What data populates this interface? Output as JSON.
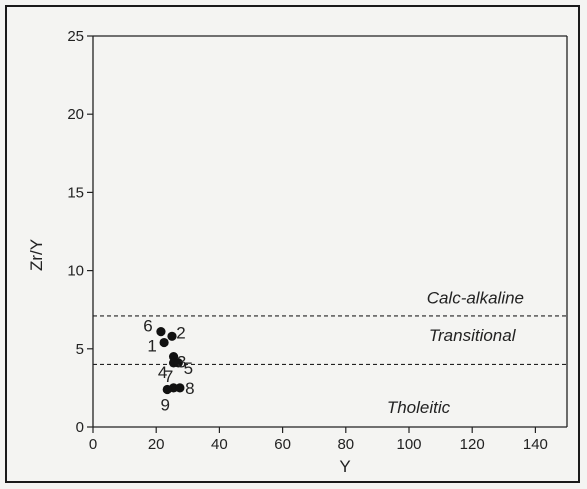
{
  "chart_data": {
    "type": "scatter",
    "xlabel": "Y",
    "ylabel": "Zr/Y",
    "xlim": [
      0,
      150
    ],
    "ylim": [
      0,
      25
    ],
    "x_ticks": [
      0,
      20,
      40,
      60,
      80,
      100,
      120,
      140
    ],
    "y_ticks": [
      0,
      5,
      10,
      15,
      20,
      25
    ],
    "grid": false,
    "points": [
      {
        "label": "1",
        "x": 22.5,
        "y": 5.4
      },
      {
        "label": "2",
        "x": 25.0,
        "y": 5.8
      },
      {
        "label": "3",
        "x": 25.5,
        "y": 4.5
      },
      {
        "label": "4",
        "x": 25.5,
        "y": 4.1
      },
      {
        "label": "5",
        "x": 27.0,
        "y": 4.1
      },
      {
        "label": "6",
        "x": 21.5,
        "y": 6.1
      },
      {
        "label": "7",
        "x": 25.5,
        "y": 2.5
      },
      {
        "label": "8",
        "x": 27.5,
        "y": 2.5
      },
      {
        "label": "9",
        "x": 23.5,
        "y": 2.4
      }
    ],
    "boundaries": [
      {
        "y": 7.1,
        "style": "dashed"
      },
      {
        "y": 4.0,
        "style": "dashed"
      }
    ],
    "field_labels": [
      {
        "text": "Calc-alkaline",
        "x": 121,
        "y": 7.9
      },
      {
        "text": "Transitional",
        "x": 120,
        "y": 5.5
      },
      {
        "text": "Tholeitic",
        "x": 103,
        "y": 0.9
      }
    ]
  }
}
